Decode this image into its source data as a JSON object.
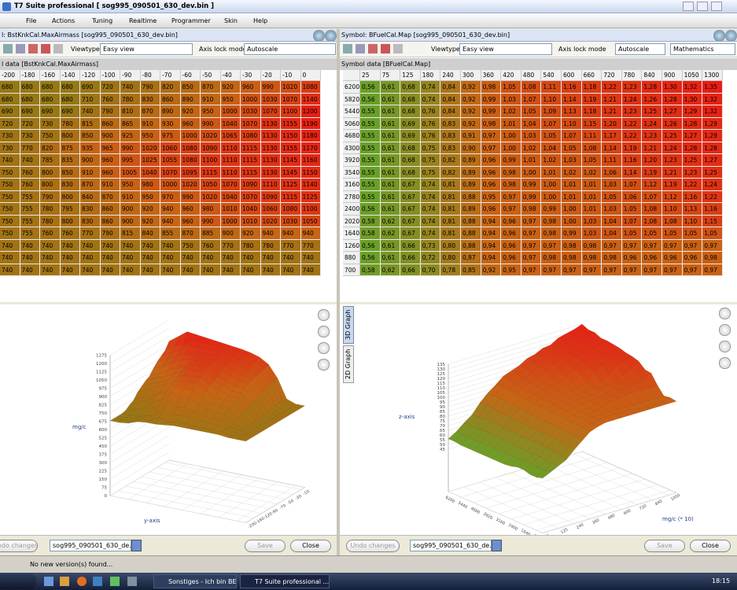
{
  "window": {
    "title": "T7 Suite professional [ sog995_090501_630_dev.bin ]"
  },
  "menu": [
    "File",
    "Actions",
    "Tuning",
    "Realtime",
    "Programmer",
    "Skin",
    "Help"
  ],
  "left_panel": {
    "title": "l: BstKnkCal.MaxAirmass [sog995_090501_630_dev.bin]",
    "viewtype_label": "Viewtype",
    "viewtype": "Easy view",
    "axis_lock_label": "Axis lock mode",
    "axis_lock": "Autoscale",
    "group_title": "l data [BstKnkCal.MaxAirmass]",
    "table": {
      "columns": [
        -200,
        -180,
        -160,
        -140,
        -120,
        -100,
        -90,
        -80,
        -70,
        -60,
        -50,
        -40,
        -30,
        -20,
        -10,
        0
      ],
      "rows": [
        [
          680,
          680,
          680,
          680,
          690,
          720,
          740,
          790,
          820,
          850,
          870,
          920,
          960,
          990,
          1020,
          1080
        ],
        [
          680,
          680,
          680,
          680,
          710,
          760,
          780,
          830,
          860,
          890,
          910,
          950,
          1000,
          1030,
          1070,
          1140
        ],
        [
          690,
          690,
          690,
          690,
          740,
          790,
          810,
          870,
          890,
          920,
          950,
          1000,
          1030,
          1070,
          1100,
          1200
        ],
        [
          720,
          720,
          730,
          780,
          815,
          860,
          865,
          910,
          930,
          960,
          990,
          1040,
          1070,
          1130,
          1155,
          1190
        ],
        [
          730,
          730,
          750,
          800,
          850,
          900,
          925,
          950,
          975,
          1000,
          1020,
          1065,
          1080,
          1130,
          1150,
          1180
        ],
        [
          730,
          770,
          820,
          875,
          935,
          965,
          990,
          1020,
          1060,
          1080,
          1090,
          1110,
          1115,
          1130,
          1155,
          1170
        ],
        [
          740,
          740,
          785,
          835,
          900,
          960,
          995,
          1025,
          1055,
          1080,
          1100,
          1110,
          1115,
          1130,
          1145,
          1160
        ],
        [
          750,
          760,
          800,
          850,
          910,
          960,
          1005,
          1040,
          1070,
          1095,
          1115,
          1110,
          1115,
          1130,
          1145,
          1150
        ],
        [
          750,
          760,
          800,
          830,
          870,
          910,
          950,
          980,
          1000,
          1020,
          1050,
          1070,
          1090,
          1110,
          1125,
          1140
        ],
        [
          750,
          755,
          790,
          800,
          840,
          870,
          910,
          950,
          970,
          990,
          1020,
          1040,
          1070,
          1090,
          1115,
          1125
        ],
        [
          750,
          755,
          780,
          795,
          830,
          860,
          900,
          920,
          940,
          960,
          980,
          1010,
          1040,
          1060,
          1080,
          1100
        ],
        [
          750,
          755,
          780,
          800,
          830,
          860,
          900,
          920,
          940,
          960,
          990,
          1000,
          1010,
          1020,
          1030,
          1050
        ],
        [
          750,
          755,
          760,
          760,
          770,
          790,
          815,
          840,
          855,
          870,
          885,
          900,
          920,
          940,
          940,
          940
        ],
        [
          740,
          740,
          740,
          740,
          740,
          740,
          740,
          740,
          740,
          750,
          760,
          770,
          780,
          780,
          770,
          770
        ],
        [
          740,
          740,
          740,
          740,
          740,
          740,
          740,
          740,
          740,
          740,
          740,
          740,
          740,
          740,
          740,
          740
        ],
        [
          740,
          740,
          740,
          740,
          740,
          740,
          740,
          740,
          740,
          740,
          740,
          740,
          740,
          740,
          740,
          740
        ]
      ]
    },
    "graph": {
      "z_label": "mg/c",
      "x_label": "y-axis",
      "z_ticks": [
        1275,
        1200,
        1125,
        1050,
        975,
        900,
        825,
        750,
        675,
        600,
        525,
        450,
        375,
        300,
        225,
        150,
        75,
        0
      ]
    },
    "buttons": {
      "undo": "Undo changes",
      "file": "sog995_090501_630_de...",
      "save": "Save",
      "close": "Close"
    }
  },
  "right_panel": {
    "title": "Symbol: BFuelCal.Map [sog995_090501_630_dev.bin]",
    "viewtype_label": "Viewtype",
    "viewtype": "Easy view",
    "axis_lock_label": "Axis lock mode",
    "axis_lock": "Autoscale",
    "mode": "Mathematics",
    "group_title": "Symbol data [BFuelCal.Map]",
    "table": {
      "columns": [
        25,
        75,
        125,
        180,
        240,
        300,
        360,
        420,
        480,
        540,
        600,
        660,
        720,
        780,
        840,
        900,
        1050,
        1300
      ],
      "row_labels": [
        6200,
        5820,
        5440,
        5060,
        4680,
        4300,
        3920,
        3540,
        3160,
        2780,
        2400,
        2020,
        1640,
        1260,
        880,
        700
      ],
      "rows": [
        [
          "0,56",
          "0,61",
          "0,68",
          "0,74",
          "0,84",
          "0,92",
          "0,98",
          "1,05",
          "1,08",
          "1,11",
          "1,16",
          "1,18",
          "1,22",
          "1,23",
          "1,28",
          "1,30",
          "1,32",
          "1,35"
        ],
        [
          "0,56",
          "0,61",
          "0,68",
          "0,74",
          "0,84",
          "0,92",
          "0,99",
          "1,03",
          "1,07",
          "1,10",
          "1,14",
          "1,19",
          "1,21",
          "1,24",
          "1,26",
          "1,28",
          "1,30",
          "1,32"
        ],
        [
          "0,55",
          "0,61",
          "0,68",
          "0,76",
          "0,84",
          "0,92",
          "0,99",
          "1,02",
          "1,05",
          "1,09",
          "1,13",
          "1,18",
          "1,21",
          "1,23",
          "1,25",
          "1,27",
          "1,29",
          "1,32"
        ],
        [
          "0,55",
          "0,61",
          "0,69",
          "0,76",
          "0,83",
          "0,92",
          "0,98",
          "1,01",
          "1,04",
          "1,07",
          "1,10",
          "1,15",
          "1,20",
          "1,22",
          "1,24",
          "1,26",
          "1,28",
          "1,29"
        ],
        [
          "0,55",
          "0,61",
          "0,69",
          "0,76",
          "0,83",
          "0,91",
          "0,97",
          "1,00",
          "1,03",
          "1,05",
          "1,07",
          "1,11",
          "1,17",
          "1,22",
          "1,23",
          "1,25",
          "1,27",
          "1,29"
        ],
        [
          "0,55",
          "0,61",
          "0,68",
          "0,75",
          "0,83",
          "0,90",
          "0,97",
          "1,00",
          "1,02",
          "1,04",
          "1,05",
          "1,08",
          "1,14",
          "1,19",
          "1,21",
          "1,24",
          "1,28",
          "1,28"
        ],
        [
          "0,55",
          "0,61",
          "0,68",
          "0,75",
          "0,82",
          "0,89",
          "0,96",
          "0,99",
          "1,01",
          "1,02",
          "1,03",
          "1,05",
          "1,11",
          "1,16",
          "1,20",
          "1,23",
          "1,25",
          "1,27"
        ],
        [
          "0,55",
          "0,61",
          "0,68",
          "0,75",
          "0,82",
          "0,89",
          "0,96",
          "0,98",
          "1,00",
          "1,01",
          "1,02",
          "1,02",
          "1,06",
          "1,14",
          "1,19",
          "1,21",
          "1,23",
          "1,25"
        ],
        [
          "0,55",
          "0,61",
          "0,67",
          "0,74",
          "0,81",
          "0,89",
          "0,96",
          "0,98",
          "0,99",
          "1,00",
          "1,01",
          "1,01",
          "1,03",
          "1,07",
          "1,12",
          "1,19",
          "1,22",
          "1,24"
        ],
        [
          "0,55",
          "0,61",
          "0,67",
          "0,74",
          "0,81",
          "0,88",
          "0,95",
          "0,97",
          "0,99",
          "1,00",
          "1,01",
          "1,01",
          "1,05",
          "1,06",
          "1,07",
          "1,12",
          "1,16",
          "1,22"
        ],
        [
          "0,56",
          "0,61",
          "0,67",
          "0,74",
          "0,81",
          "0,89",
          "0,96",
          "0,97",
          "0,98",
          "0,99",
          "1,00",
          "1,01",
          "1,03",
          "1,05",
          "1,08",
          "1,10",
          "1,13",
          "1,16"
        ],
        [
          "0,58",
          "0,62",
          "0,67",
          "0,74",
          "0,81",
          "0,88",
          "0,94",
          "0,96",
          "0,97",
          "0,98",
          "1,00",
          "1,03",
          "1,04",
          "1,07",
          "1,08",
          "1,08",
          "1,10",
          "1,15"
        ],
        [
          "0,58",
          "0,62",
          "0,67",
          "0,74",
          "0,81",
          "0,88",
          "0,94",
          "0,96",
          "0,97",
          "0,98",
          "0,99",
          "1,03",
          "1,04",
          "1,05",
          "1,05",
          "1,05",
          "1,05",
          "1,05"
        ],
        [
          "0,56",
          "0,61",
          "0,66",
          "0,73",
          "0,80",
          "0,88",
          "0,94",
          "0,96",
          "0,97",
          "0,97",
          "0,98",
          "0,98",
          "0,97",
          "0,97",
          "0,97",
          "0,97",
          "0,97",
          "0,97"
        ],
        [
          "0,56",
          "0,61",
          "0,66",
          "0,72",
          "0,80",
          "0,87",
          "0,94",
          "0,96",
          "0,97",
          "0,98",
          "0,98",
          "0,98",
          "0,98",
          "0,96",
          "0,96",
          "0,96",
          "0,96",
          "0,98"
        ],
        [
          "0,58",
          "0,62",
          "0,66",
          "0,70",
          "0,78",
          "0,85",
          "0,92",
          "0,95",
          "0,97",
          "0,97",
          "0,97",
          "0,97",
          "0,97",
          "0,97",
          "0,97",
          "0,97",
          "0,97",
          "0,97"
        ]
      ]
    },
    "graph": {
      "z_label": "z-axis",
      "x_label": "mg/c (* 10)",
      "z_ticks": [
        135,
        130,
        125,
        120,
        115,
        110,
        105,
        100,
        95,
        90,
        85,
        80,
        75,
        70,
        65,
        60,
        55,
        50,
        45
      ]
    },
    "tabs": [
      "3D Graph",
      "2D Graph"
    ],
    "buttons": {
      "undo": "Undo changes",
      "file": "sog995_090501_630_de...",
      "save": "Save",
      "close": "Close"
    }
  },
  "status": "No new version(s) found...",
  "taskbar": {
    "tasks": [
      "Sonstiges - Ich bin BE...",
      "T7 Suite professional ..."
    ],
    "clock": "18:15"
  }
}
